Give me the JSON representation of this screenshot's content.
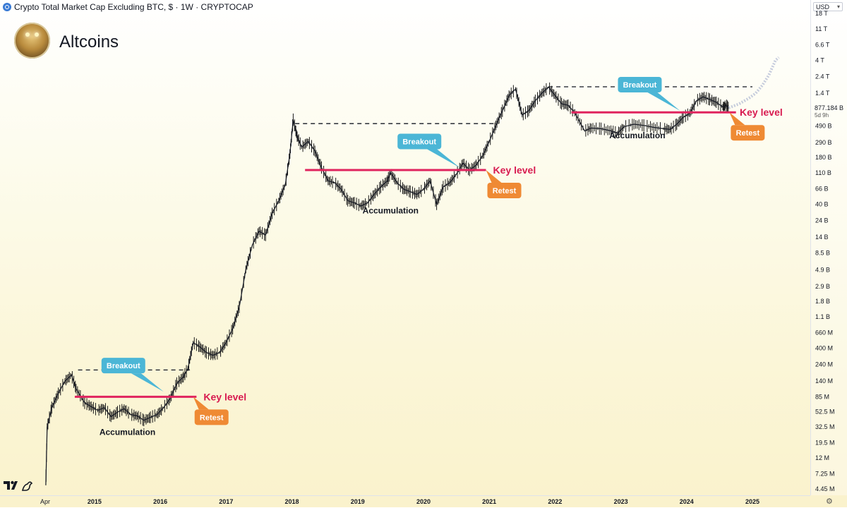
{
  "header": {
    "symbol_title": "Crypto Total Market Cap Excluding BTC, $ · 1W · CRYPTOCAP",
    "symbol_icon": "crypto-cap-icon"
  },
  "brand": {
    "title": "Altcoins",
    "avatar_icon": "profile-avatar-icon"
  },
  "price_axis": {
    "currency": "USD",
    "current_value": "877.184 B",
    "countdown": "5d 9h",
    "current_color": "#131722"
  },
  "colors": {
    "key_level_line": "#e0245e",
    "key_level_text": "#d81b50",
    "breakout_bg": "#4bb6d6",
    "retest_bg": "#ef8a34",
    "dashed_line": "#131722"
  },
  "chart_data": {
    "type": "line",
    "title": "Crypto Total Market Cap Excluding BTC, $ · 1W · CRYPTOCAP",
    "yscale": "log",
    "yunit": "USD",
    "ylim": [
      4450000,
      18000000000000
    ],
    "y_tick_labels": [
      "18 T",
      "11 T",
      "6.6 T",
      "4 T",
      "2.4 T",
      "1.4 T",
      "490 B",
      "290 B",
      "180 B",
      "110 B",
      "66 B",
      "40 B",
      "24 B",
      "14 B",
      "8.5 B",
      "4.9 B",
      "2.9 B",
      "1.8 B",
      "1.1 B",
      "660 M",
      "400 M",
      "240 M",
      "140 M",
      "85 M",
      "52.5 M",
      "32.5 M",
      "19.5 M",
      "12 M",
      "7.25 M",
      "4.45 M"
    ],
    "y_tick_values": [
      18000000000000.0,
      11000000000000.0,
      6600000000000.0,
      4000000000000.0,
      2400000000000.0,
      1400000000000.0,
      490000000000.0,
      290000000000.0,
      180000000000.0,
      110000000000.0,
      66000000000.0,
      40000000000.0,
      24000000000.0,
      14000000000.0,
      8500000000.0,
      4900000000.0,
      2900000000.0,
      1800000000.0,
      1100000000.0,
      660000000.0,
      400000000.0,
      240000000.0,
      140000000.0,
      85000000.0,
      52500000.0,
      32500000.0,
      19500000.0,
      12000000.0,
      7250000.0,
      4450000.0
    ],
    "x_tick_labels": [
      "Apr",
      "2015",
      "2016",
      "2017",
      "2018",
      "2019",
      "2020",
      "2021",
      "2022",
      "2023",
      "2024",
      "2025"
    ],
    "x_tick_values": [
      2014.25,
      2015,
      2016,
      2017,
      2018,
      2019,
      2020,
      2021,
      2022,
      2023,
      2024,
      2025
    ],
    "xlim": [
      2013.95,
      2025.75
    ],
    "grid": false,
    "series": [
      {
        "values": [
          [
            2014.26,
            5000000
          ],
          [
            2014.28,
            32000000
          ],
          [
            2014.35,
            60000000
          ],
          [
            2014.45,
            95000000
          ],
          [
            2014.55,
            140000000
          ],
          [
            2014.65,
            170000000
          ],
          [
            2014.72,
            110000000
          ],
          [
            2014.85,
            70000000
          ],
          [
            2014.95,
            62000000
          ],
          [
            2015.05,
            55000000
          ],
          [
            2015.15,
            60000000
          ],
          [
            2015.25,
            45000000
          ],
          [
            2015.35,
            52000000
          ],
          [
            2015.45,
            58000000
          ],
          [
            2015.55,
            48000000
          ],
          [
            2015.65,
            46000000
          ],
          [
            2015.75,
            40000000
          ],
          [
            2015.85,
            44000000
          ],
          [
            2015.95,
            48000000
          ],
          [
            2016.05,
            60000000
          ],
          [
            2016.15,
            80000000
          ],
          [
            2016.25,
            130000000
          ],
          [
            2016.35,
            160000000
          ],
          [
            2016.42,
            210000000
          ],
          [
            2016.5,
            480000000
          ],
          [
            2016.6,
            420000000
          ],
          [
            2016.7,
            350000000
          ],
          [
            2016.8,
            320000000
          ],
          [
            2016.9,
            350000000
          ],
          [
            2017.0,
            480000000
          ],
          [
            2017.1,
            750000000
          ],
          [
            2017.2,
            1500000000
          ],
          [
            2017.3,
            5000000000
          ],
          [
            2017.4,
            11000000000
          ],
          [
            2017.5,
            17000000000
          ],
          [
            2017.6,
            15000000000
          ],
          [
            2017.7,
            30000000000
          ],
          [
            2017.8,
            45000000000
          ],
          [
            2017.9,
            75000000000
          ],
          [
            2017.97,
            200000000000
          ],
          [
            2018.02,
            600000000000
          ],
          [
            2018.08,
            350000000000
          ],
          [
            2018.15,
            250000000000
          ],
          [
            2018.25,
            300000000000
          ],
          [
            2018.35,
            220000000000
          ],
          [
            2018.45,
            130000000000
          ],
          [
            2018.55,
            85000000000
          ],
          [
            2018.65,
            80000000000
          ],
          [
            2018.75,
            65000000000
          ],
          [
            2018.85,
            45000000000
          ],
          [
            2018.95,
            42000000000
          ],
          [
            2019.05,
            38000000000
          ],
          [
            2019.15,
            42000000000
          ],
          [
            2019.25,
            55000000000
          ],
          [
            2019.35,
            70000000000
          ],
          [
            2019.45,
            85000000000
          ],
          [
            2019.5,
            110000000000
          ],
          [
            2019.6,
            80000000000
          ],
          [
            2019.7,
            65000000000
          ],
          [
            2019.8,
            60000000000
          ],
          [
            2019.9,
            55000000000
          ],
          [
            2020.0,
            65000000000
          ],
          [
            2020.1,
            85000000000
          ],
          [
            2020.2,
            40000000000
          ],
          [
            2020.3,
            70000000000
          ],
          [
            2020.4,
            80000000000
          ],
          [
            2020.5,
            105000000000
          ],
          [
            2020.6,
            150000000000
          ],
          [
            2020.7,
            120000000000
          ],
          [
            2020.8,
            140000000000
          ],
          [
            2020.9,
            190000000000
          ],
          [
            2021.0,
            300000000000
          ],
          [
            2021.1,
            500000000000
          ],
          [
            2021.2,
            800000000000
          ],
          [
            2021.3,
            1300000000000
          ],
          [
            2021.4,
            1600000000000
          ],
          [
            2021.5,
            700000000000
          ],
          [
            2021.6,
            800000000000
          ],
          [
            2021.7,
            1100000000000
          ],
          [
            2021.8,
            1400000000000
          ],
          [
            2021.9,
            1700000000000
          ],
          [
            2022.0,
            1300000000000
          ],
          [
            2022.1,
            1000000000000
          ],
          [
            2022.2,
            950000000000
          ],
          [
            2022.3,
            750000000000
          ],
          [
            2022.45,
            420000000000
          ],
          [
            2022.55,
            460000000000
          ],
          [
            2022.7,
            450000000000
          ],
          [
            2022.85,
            420000000000
          ],
          [
            2022.95,
            390000000000
          ],
          [
            2023.05,
            480000000000
          ],
          [
            2023.2,
            520000000000
          ],
          [
            2023.35,
            500000000000
          ],
          [
            2023.5,
            470000000000
          ],
          [
            2023.65,
            450000000000
          ],
          [
            2023.75,
            440000000000
          ],
          [
            2023.85,
            520000000000
          ],
          [
            2023.95,
            650000000000
          ],
          [
            2024.05,
            740000000000
          ],
          [
            2024.15,
            1100000000000
          ],
          [
            2024.25,
            1250000000000
          ],
          [
            2024.35,
            1150000000000
          ],
          [
            2024.45,
            1050000000000
          ],
          [
            2024.55,
            900000000000
          ],
          [
            2024.6,
            950000000000
          ],
          [
            2024.64,
            877184000000
          ]
        ]
      },
      {
        "values": [
          [
            2024.64,
            877184000000
          ],
          [
            2024.8,
            1000000000000
          ],
          [
            2024.95,
            1200000000000
          ],
          [
            2025.05,
            1400000000000
          ],
          [
            2025.15,
            1800000000000
          ],
          [
            2025.25,
            2500000000000
          ],
          [
            2025.35,
            4000000000000
          ],
          [
            2025.4,
            4400000000000
          ]
        ]
      }
    ],
    "annotations": [
      {
        "label": "Breakout",
        "kind": "breakout",
        "x": 2016.05,
        "y": 100000000
      },
      {
        "label": "Retest",
        "kind": "retest",
        "x": 2016.5,
        "y": 85000000
      },
      {
        "label": "Key level",
        "kind": "key_level",
        "x": 2016.55,
        "y": 85000000
      },
      {
        "label": "Accumulation",
        "kind": "accumulation",
        "x": 2015.5,
        "y": 25000000
      },
      {
        "label": "Breakout",
        "kind": "breakout",
        "x": 2020.55,
        "y": 130000000000
      },
      {
        "label": "Retest",
        "kind": "retest",
        "x": 2020.95,
        "y": 120000000000
      },
      {
        "label": "Key level",
        "kind": "key_level",
        "x": 2020.95,
        "y": 120000000000
      },
      {
        "label": "Accumulation",
        "kind": "accumulation",
        "x": 2019.5,
        "y": 30000000000
      },
      {
        "label": "Breakout",
        "kind": "breakout",
        "x": 2023.9,
        "y": 800000000000
      },
      {
        "label": "Retest",
        "kind": "retest",
        "x": 2024.65,
        "y": 760000000000
      },
      {
        "label": "Key level",
        "kind": "key_level",
        "x": 2024.7,
        "y": 760000000000
      },
      {
        "label": "Accumulation",
        "kind": "accumulation",
        "x": 2023.25,
        "y": 330000000000
      }
    ],
    "key_levels": [
      {
        "x_start": 2014.7,
        "x_end": 2016.55,
        "y": 85000000
      },
      {
        "x_start": 2018.2,
        "x_end": 2020.95,
        "y": 120000000000
      },
      {
        "x_start": 2022.25,
        "x_end": 2024.75,
        "y": 760000000000
      }
    ],
    "dashed_lines": [
      {
        "x_start": 2014.75,
        "x_end": 2016.45,
        "y": 200000000
      },
      {
        "x_start": 2018.05,
        "x_end": 2021.1,
        "y": 530000000000
      },
      {
        "x_start": 2021.9,
        "x_end": 2025.0,
        "y": 1720000000000
      }
    ]
  }
}
